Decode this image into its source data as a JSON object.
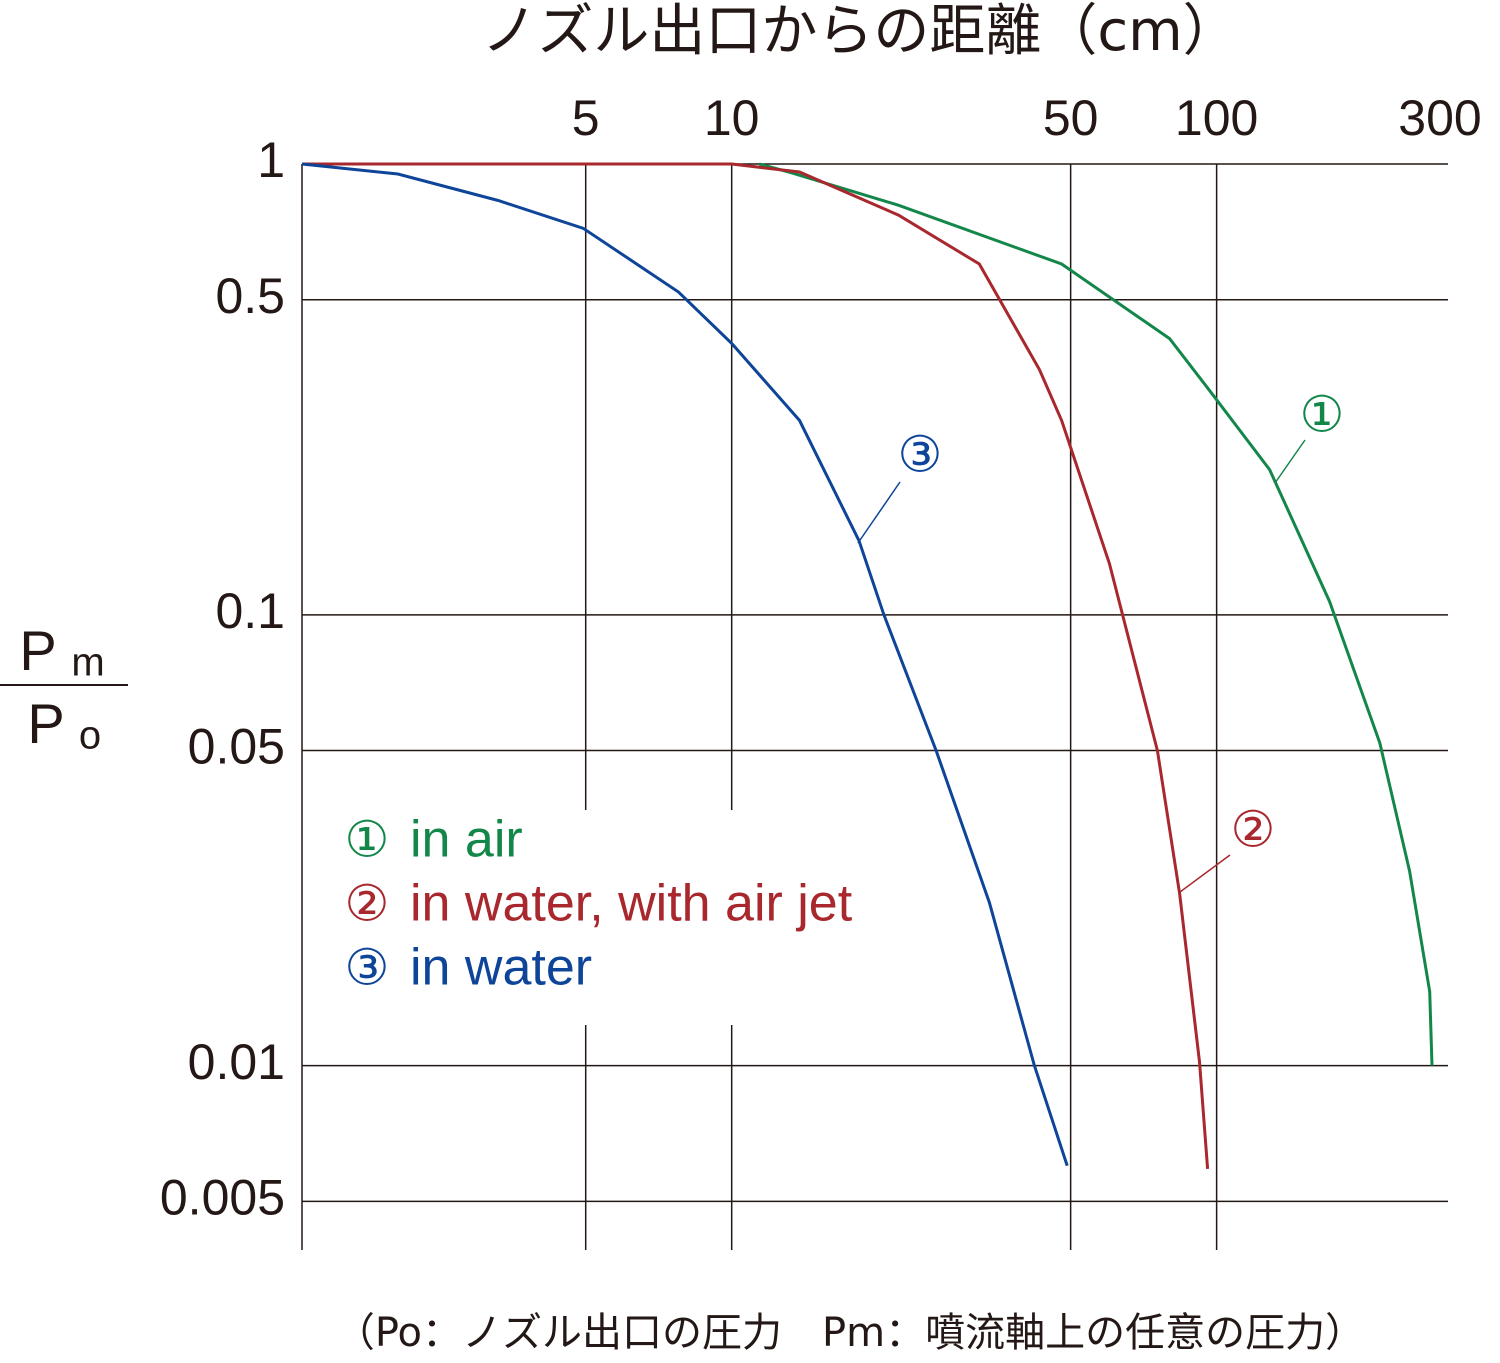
{
  "chart_data": {
    "type": "line",
    "title": "ノズル出口からの距離（cm）",
    "ylabel": {
      "numerator": {
        "main": "P",
        "sub": "m"
      },
      "denominator": {
        "main": "P",
        "sub": "o"
      }
    },
    "footnote": "（Po：ノズル出口の圧力　Pm：噴流軸上の任意の圧力）",
    "xscale": "log",
    "yscale": "log",
    "grid": true,
    "xlim": [
      1.3,
      300
    ],
    "xticks": [
      5,
      10,
      50,
      100,
      300
    ],
    "ylim": [
      0.0039,
      1
    ],
    "yticks": [
      1,
      0.5,
      0.1,
      0.05,
      0.01,
      0.005
    ],
    "series": [
      {
        "marker": "①",
        "name": "in air",
        "color": "#13874a",
        "x": [
          11.4,
          13.1,
          22.1,
          47.9,
          80,
          97.7,
          128.6,
          171,
          217,
          250,
          275,
          278
        ],
        "values": [
          1,
          0.96,
          0.81,
          0.6,
          0.41,
          0.31,
          0.21,
          0.107,
          0.052,
          0.027,
          0.0146,
          0.01
        ]
      },
      {
        "marker": "②",
        "name": "in water, with air jet",
        "color": "#a8282e",
        "x": [
          1.3,
          10,
          13.8,
          22.1,
          32.4,
          43.1,
          47.9,
          60.1,
          75.5,
          83.9,
          92.2,
          95.8
        ],
        "values": [
          1,
          1,
          0.96,
          0.77,
          0.6,
          0.35,
          0.27,
          0.13,
          0.05,
          0.024,
          0.0102,
          0.0059
        ]
      },
      {
        "marker": "③",
        "name": "in water",
        "color": "#0e4599",
        "x": [
          1.3,
          2.05,
          3.3,
          4.94,
          7.77,
          10,
          13.8,
          18.3,
          20.6,
          26.4,
          34,
          42.1,
          49.2
        ],
        "values": [
          1,
          0.95,
          0.83,
          0.72,
          0.52,
          0.4,
          0.27,
          0.146,
          0.1,
          0.05,
          0.023,
          0.01,
          0.006
        ]
      }
    ]
  }
}
